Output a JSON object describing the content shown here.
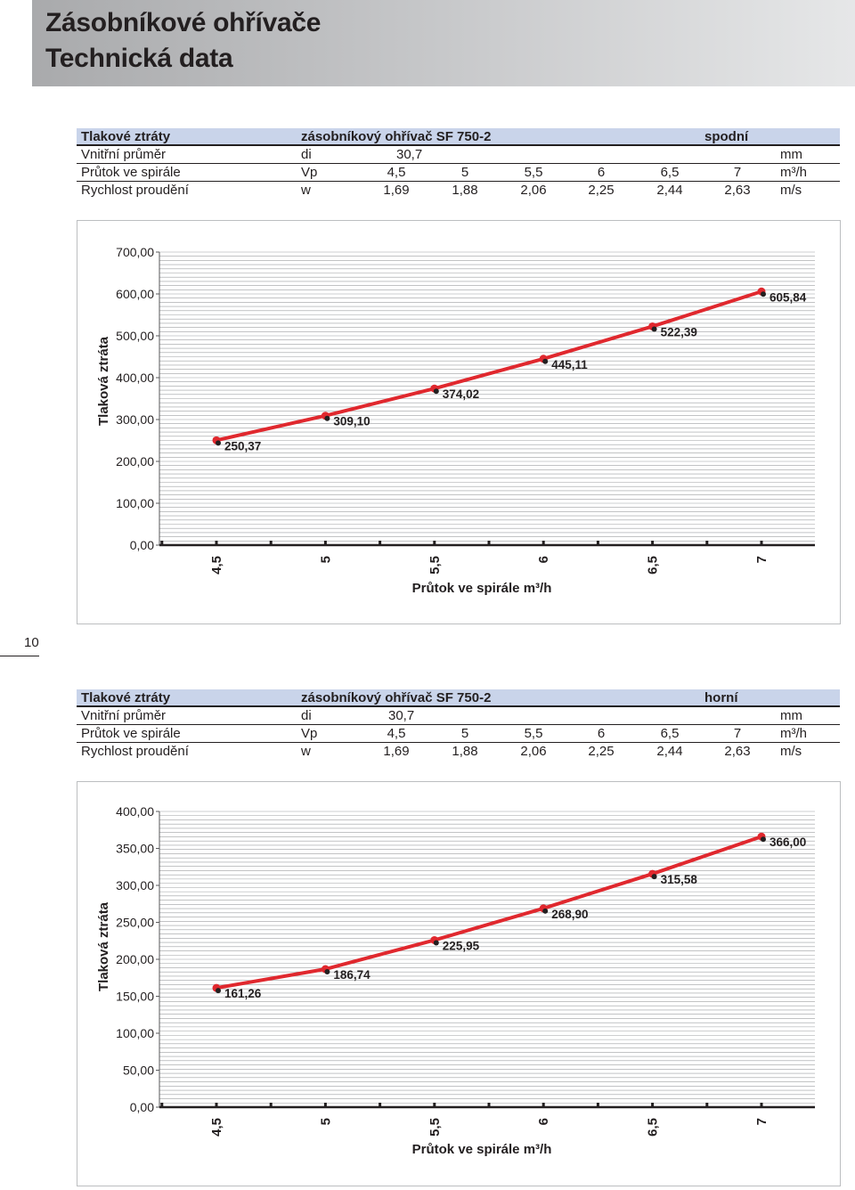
{
  "header": {
    "title_line1": "Zásobníkové ohřívače",
    "title_line2": "Technická data"
  },
  "page_number": "10",
  "tables": [
    {
      "rows": [
        {
          "label": "Tlakové ztráty",
          "symbol": "zásobníkový ohřívač SF 750-2",
          "values": [],
          "extra": "spodní",
          "unit": ""
        },
        {
          "label": "Vnitřní průměr",
          "symbol": "di",
          "values": [
            "30,7"
          ],
          "extra": "",
          "unit": "mm"
        },
        {
          "label": "Průtok ve spirále",
          "symbol": "Vp",
          "values": [
            "4,5",
            "5",
            "5,5",
            "6",
            "6,5",
            "7"
          ],
          "extra": "",
          "unit": "m³/h"
        },
        {
          "label": "Rychlost proudění",
          "symbol": "w",
          "values": [
            "1,69",
            "1,88",
            "2,06",
            "2,25",
            "2,44",
            "2,63"
          ],
          "extra": "",
          "unit": "m/s"
        }
      ]
    },
    {
      "rows": [
        {
          "label": "Tlakové ztráty",
          "symbol": "zásobníkový ohřívač SF 750-2",
          "values": [],
          "extra": "horní",
          "unit": ""
        },
        {
          "label": "Vnitřní průměr",
          "symbol": "di",
          "values": [
            "30,7"
          ],
          "extra": "",
          "unit": "mm"
        },
        {
          "label": "Průtok ve spirále",
          "symbol": "Vp",
          "values": [
            "4,5",
            "5",
            "5,5",
            "6",
            "6,5",
            "7"
          ],
          "extra": "",
          "unit": "m³/h"
        },
        {
          "label": "Rychlost proudění",
          "symbol": "w",
          "values": [
            "1,69",
            "1,88",
            "2,06",
            "2,25",
            "2,44",
            "2,63"
          ],
          "extra": "",
          "unit": "m/s"
        }
      ]
    }
  ],
  "chart_data": [
    {
      "type": "line",
      "title": "",
      "xlabel": "Průtok ve spirále m³/h",
      "ylabel": "Tlaková ztráta",
      "categories": [
        "4,5",
        "5",
        "5,5",
        "6",
        "6,5",
        "7"
      ],
      "values": [
        250.37,
        309.1,
        374.02,
        445.11,
        522.39,
        605.84
      ],
      "data_labels": [
        "250,37",
        "309,10",
        "374,02",
        "445,11",
        "522,39",
        "605,84"
      ],
      "yticks": [
        "0,00",
        "100,00",
        "200,00",
        "300,00",
        "400,00",
        "500,00",
        "600,00",
        "700,00"
      ],
      "ylim": [
        0,
        700
      ],
      "grid": true,
      "line_color": "#e0282e",
      "marker_color": "#231f20"
    },
    {
      "type": "line",
      "title": "",
      "xlabel": "Průtok ve spirále m³/h",
      "ylabel": "Tlaková ztráta",
      "categories": [
        "4,5",
        "5",
        "5,5",
        "6",
        "6,5",
        "7"
      ],
      "values": [
        161.26,
        186.74,
        225.95,
        268.9,
        315.58,
        366.0
      ],
      "data_labels": [
        "161,26",
        "186,74",
        "225,95",
        "268,90",
        "315,58",
        "366,00"
      ],
      "yticks": [
        "0,00",
        "50,00",
        "100,00",
        "150,00",
        "200,00",
        "250,00",
        "300,00",
        "350,00",
        "400,00"
      ],
      "ylim": [
        0,
        400
      ],
      "grid": true,
      "line_color": "#e0282e",
      "marker_color": "#231f20"
    }
  ]
}
